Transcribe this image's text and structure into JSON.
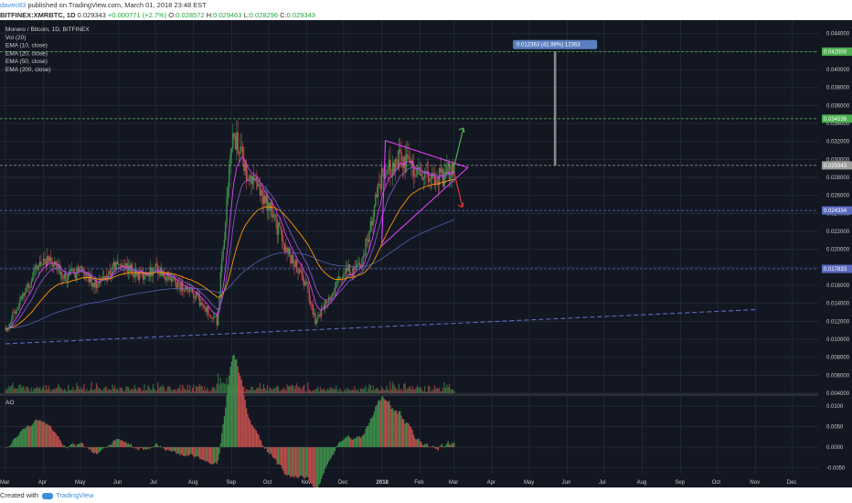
{
  "header": {
    "user": "davec83",
    "published": "published on TradingView.com, March 01, 2018 23:48 EST",
    "symbol": "BITFINEX:XMRBTC, 1D",
    "last": "0.029343",
    "change": "+0.000771 (+2.7%)",
    "ohlc_open_label": "O:",
    "ohlc_open": "0.028572",
    "ohlc_high_label": "H:",
    "ohlc_high": "0.029463",
    "ohlc_low_label": "L:",
    "ohlc_low": "0.028296",
    "ohlc_close_label": "C:",
    "ohlc_close": "0.029343"
  },
  "footer": {
    "created": "Created with",
    "brand": "TradingView"
  },
  "legend": [
    "Monero / Bitcoin, 1D, BITFINEX",
    "Vol (20)",
    "EMA (10, close)",
    "EMA (20, close)",
    "EMA (50, close)",
    "EMA (200, close)"
  ],
  "ao_label": "AO",
  "colors": {
    "bg": "#131722",
    "up": "#3f8f4a",
    "down": "#c0504d",
    "ema10": "#e040fb",
    "ema20": "#7e57c2",
    "ema50": "#ff9800",
    "ema200": "#5c6bc0",
    "triangle": "#e040fb",
    "measure": "#5b7fbf"
  },
  "chart_data": {
    "type": "candlestick",
    "x_axis": [
      "Mar",
      "Apr",
      "May",
      "Jun",
      "Jul",
      "Aug",
      "Sep",
      "Oct",
      "Nov",
      "Dec",
      "2018",
      "Feb",
      "Mar",
      "Apr",
      "May",
      "Jun",
      "Jul",
      "Aug",
      "Sep",
      "Oct",
      "Nov",
      "Dec"
    ],
    "y_ticks": [
      "0.044000",
      "0.042000",
      "0.040000",
      "0.038000",
      "0.036000",
      "0.034000",
      "0.032000",
      "0.030000",
      "0.028000",
      "0.026000",
      "0.024000",
      "0.022000",
      "0.020000",
      "0.018000",
      "0.016000",
      "0.014000",
      "0.012000",
      "0.010000",
      "0.008000",
      "0.006000",
      "0.004000"
    ],
    "ylim": [
      0.004,
      0.0455
    ],
    "price_series": [
      [
        "2017-03",
        0.011
      ],
      [
        "2017-03-15",
        0.015
      ],
      [
        "2017-04",
        0.019
      ],
      [
        "2017-04-20",
        0.017
      ],
      [
        "2017-05",
        0.0175
      ],
      [
        "2017-05-15",
        0.016
      ],
      [
        "2017-06",
        0.0185
      ],
      [
        "2017-06-20",
        0.017
      ],
      [
        "2017-07",
        0.018
      ],
      [
        "2017-07-20",
        0.016
      ],
      [
        "2017-08",
        0.015
      ],
      [
        "2017-08-20",
        0.012
      ],
      [
        "2017-08-28",
        0.025
      ],
      [
        "2017-09-02",
        0.033
      ],
      [
        "2017-09-15",
        0.028
      ],
      [
        "2017-10",
        0.025
      ],
      [
        "2017-10-15",
        0.02
      ],
      [
        "2017-11",
        0.016
      ],
      [
        "2017-11-08",
        0.012
      ],
      [
        "2017-11-20",
        0.015
      ],
      [
        "2017-12",
        0.0175
      ],
      [
        "2017-12-15",
        0.018
      ],
      [
        "2017-12-25",
        0.024
      ],
      [
        "2018-01",
        0.028
      ],
      [
        "2018-01-15",
        0.03
      ],
      [
        "2018-02",
        0.0285
      ],
      [
        "2018-02-20",
        0.028
      ],
      [
        "2018-03-01",
        0.029343
      ]
    ],
    "horizontal_levels": [
      {
        "label": "0.042000",
        "value": 0.042,
        "color": "#4caf50"
      },
      {
        "label": "0.034536",
        "value": 0.034536,
        "color": "#4caf50"
      },
      {
        "label": "0.029343",
        "value": 0.029343,
        "color": "#9e9e9e"
      },
      {
        "label": "0.024334",
        "value": 0.024334,
        "color": "#5c6bc0"
      },
      {
        "label": "0.017833",
        "value": 0.017833,
        "color": "#5c6bc0"
      }
    ],
    "measure_label": "0.012363 (41.98%) 12363",
    "ao_ticks": [
      "0.0100",
      "0.0050",
      "0.0000",
      "-0.0050"
    ],
    "ao_ylim": [
      -0.0065,
      0.0125
    ]
  }
}
